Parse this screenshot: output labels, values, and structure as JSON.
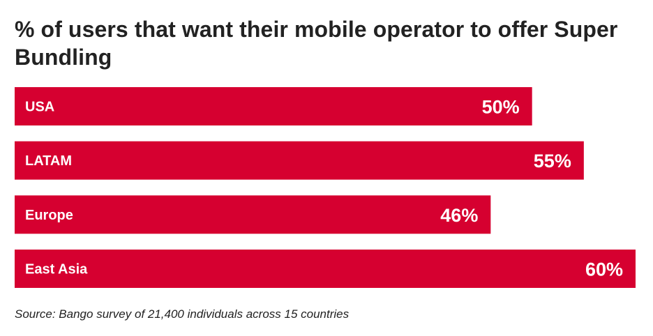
{
  "chart_data": {
    "type": "bar",
    "orientation": "horizontal",
    "title": "% of users that want their mobile operator to offer Super Bundling",
    "categories": [
      "USA",
      "LATAM",
      "Europe",
      "East Asia"
    ],
    "values": [
      50,
      55,
      46,
      60
    ],
    "value_labels": [
      "50%",
      "55%",
      "46%",
      "60%"
    ],
    "value_suffix": "%",
    "xlim": [
      0,
      60
    ],
    "grid": false,
    "legend": "none",
    "source": "Source: Bango survey of 21,400 individuals across 15 countries",
    "colors": {
      "bar": "#d60030",
      "bar_text": "#ffffff",
      "title_text": "#222222"
    }
  }
}
